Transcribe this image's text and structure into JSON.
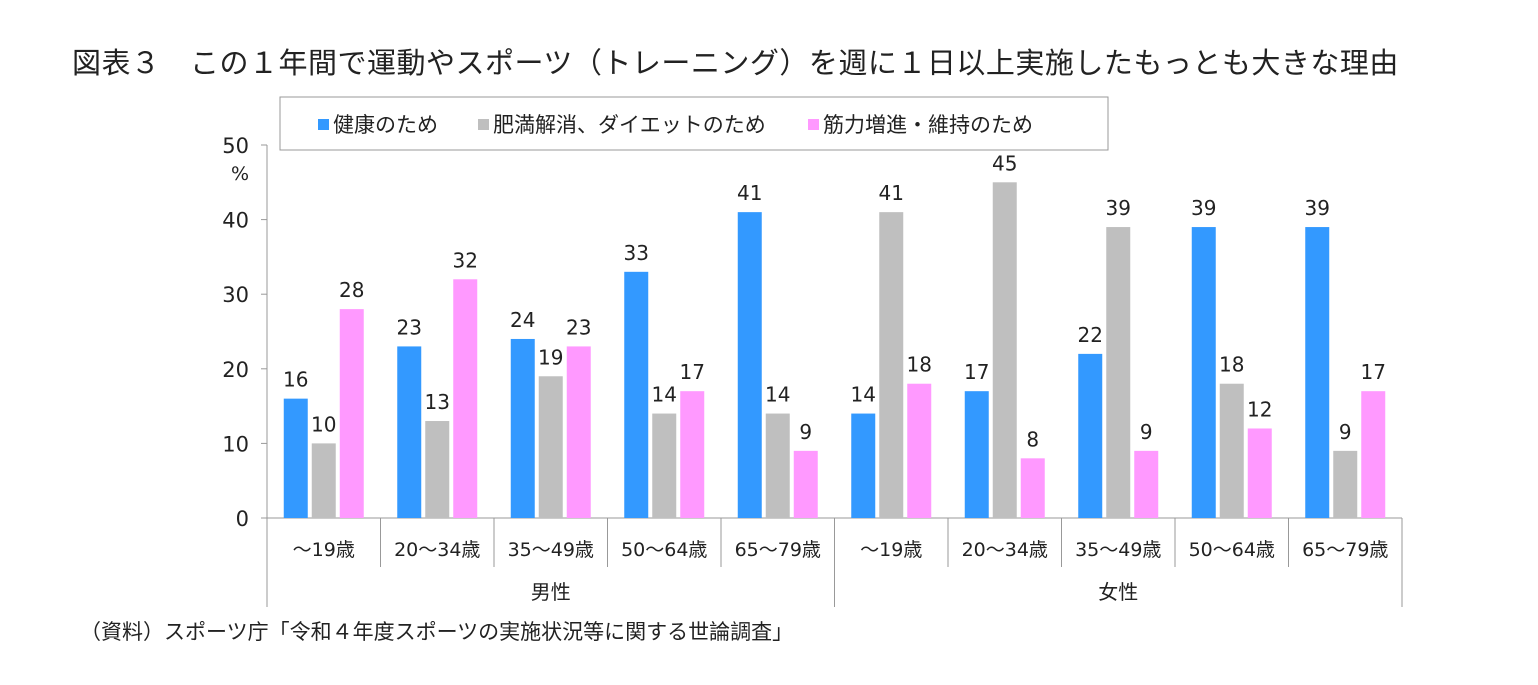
{
  "title": "図表３　この１年間で運動やスポーツ（トレーニング）を週に１日以上実施したもっとも大きな理由",
  "source": "（資料）スポーツ庁「令和４年度スポーツの実施状況等に関する世論調査」",
  "chart_data": {
    "type": "bar",
    "title": "図表３　この１年間で運動やスポーツ（トレーニング）を週に１日以上実施したもっとも大きな理由",
    "ylabel": "%",
    "ylim": [
      0,
      50
    ],
    "yticks": [
      0,
      10,
      20,
      30,
      40,
      50
    ],
    "grid": false,
    "legend_position": "top",
    "groups": [
      {
        "label": "男性",
        "categories": [
          "～19歳",
          "20～34歳",
          "35～49歳",
          "50～64歳",
          "65～79歳"
        ]
      },
      {
        "label": "女性",
        "categories": [
          "～19歳",
          "20～34歳",
          "35～49歳",
          "50～64歳",
          "65～79歳"
        ]
      }
    ],
    "categories": [
      "～19歳",
      "20～34歳",
      "35～49歳",
      "50～64歳",
      "65～79歳",
      "～19歳",
      "20～34歳",
      "35～49歳",
      "50～64歳",
      "65～79歳"
    ],
    "series": [
      {
        "name": "健康のため",
        "color": "#3399FF",
        "values": [
          16,
          23,
          24,
          33,
          41,
          14,
          17,
          22,
          39,
          39
        ]
      },
      {
        "name": "肥満解消、ダイエットのため",
        "color": "#BFBFBF",
        "values": [
          10,
          13,
          19,
          14,
          14,
          41,
          45,
          39,
          18,
          9
        ]
      },
      {
        "name": "筋力増進・維持のため",
        "color": "#FF99FF",
        "values": [
          28,
          32,
          23,
          17,
          9,
          18,
          8,
          9,
          12,
          17
        ]
      }
    ]
  }
}
